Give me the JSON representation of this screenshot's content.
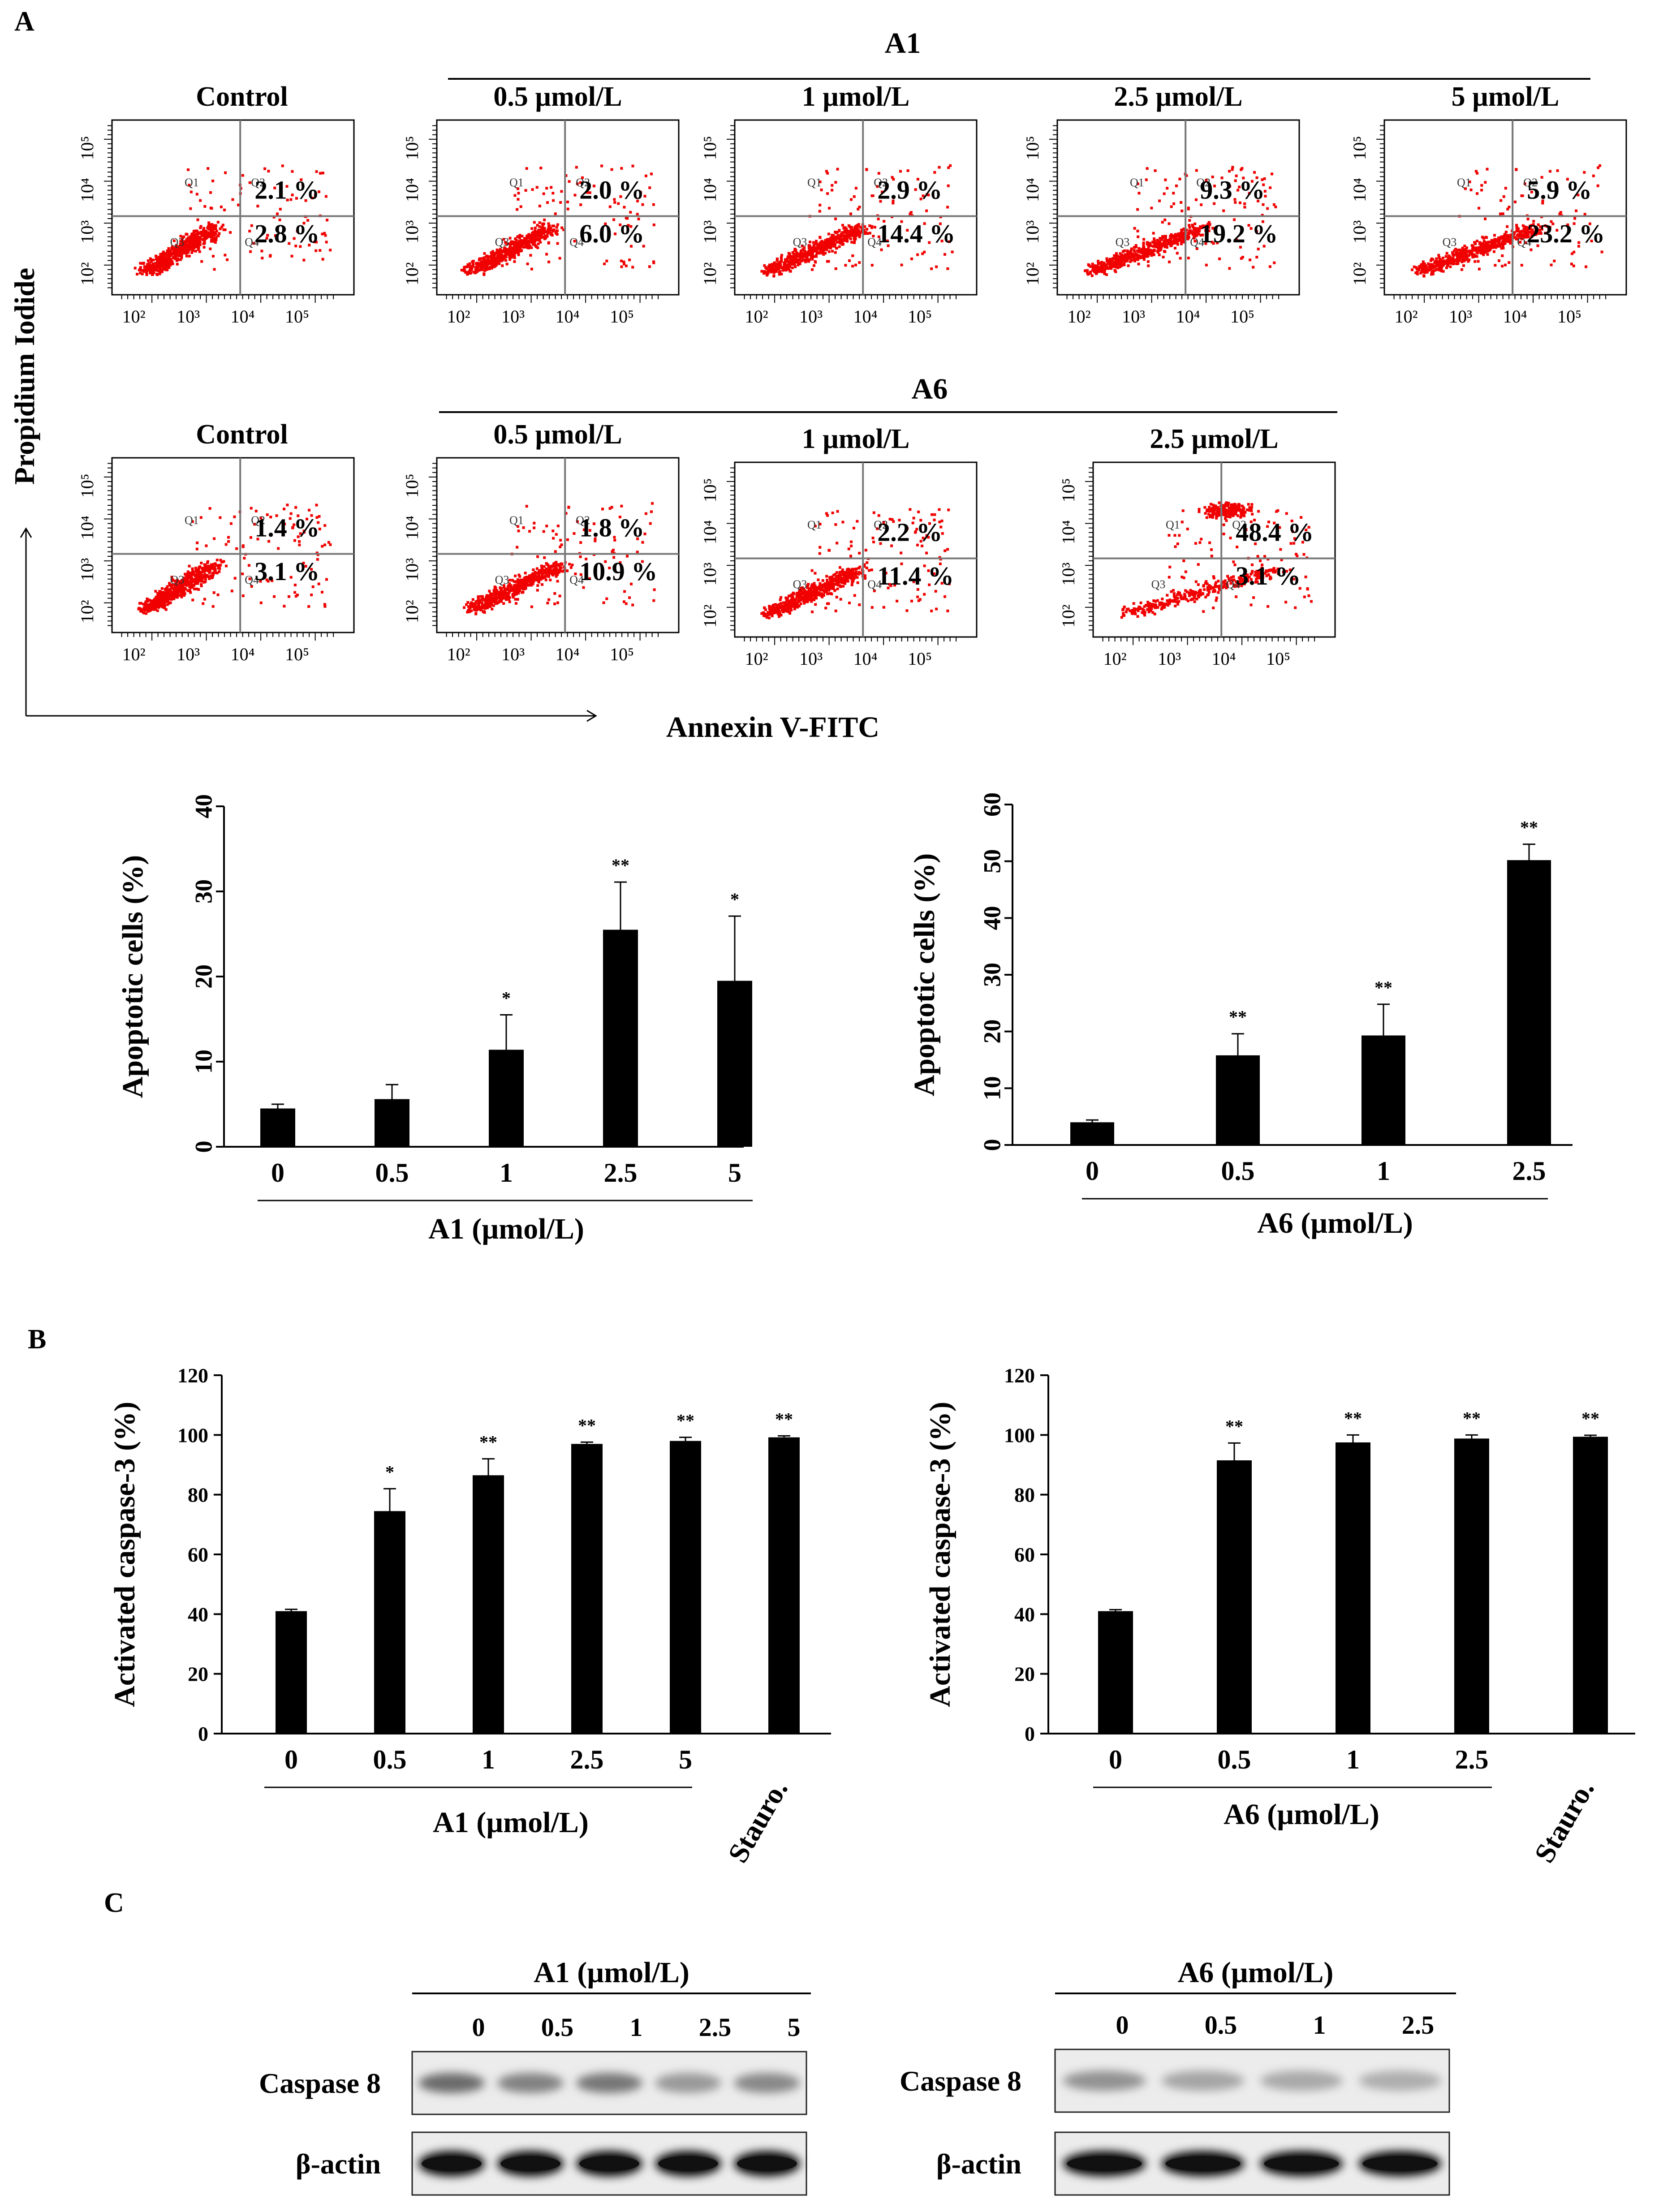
{
  "panel_labels": {
    "A": "A",
    "B": "B",
    "C": "C"
  },
  "flow": {
    "y_axis_label": "Propidium Iodide",
    "x_axis_label": "Annexin V-FITC",
    "tick_labels": [
      "10²",
      "10³",
      "10⁴",
      "10⁵"
    ],
    "gate_labels": [
      "Q1",
      "Q2",
      "Q3",
      "Q4"
    ],
    "rows": [
      {
        "group": "A1",
        "plots": [
          {
            "title": "Control",
            "upper": "2.1 %",
            "lower": "2.8 %",
            "spread": 0.1
          },
          {
            "title": "0.5 µmol/L",
            "upper": "2.0 %",
            "lower": "6.0 %",
            "spread": 0.22
          },
          {
            "title": "1 µmol/L",
            "upper": "2.9 %",
            "lower": "14.4 %",
            "spread": 0.35
          },
          {
            "title": "2.5 µmol/L",
            "upper": "9.3 %",
            "lower": "19.2 %",
            "spread": 0.55
          },
          {
            "title": "5 µmol/L",
            "upper": "5.9 %",
            "lower": "23.2 %",
            "spread": 0.62
          }
        ]
      },
      {
        "group": "A6",
        "plots": [
          {
            "title": "Control",
            "upper": "1.4 %",
            "lower": "3.1 %",
            "spread": 0.1
          },
          {
            "title": "0.5 µmol/L",
            "upper": "1.8 %",
            "lower": "10.9 %",
            "spread": 0.3
          },
          {
            "title": "1 µmol/L",
            "upper": "2.2 %",
            "lower": "11.4 %",
            "spread": 0.32
          },
          {
            "title": "2.5 µmol/L",
            "upper": "48.4 %",
            "lower": "3.1 %",
            "spread": 0.9
          }
        ]
      }
    ]
  },
  "chart_data": [
    {
      "id": "A1-apoptosis",
      "type": "bar",
      "title": "",
      "xlabel": "A1 (µmol/L)",
      "ylabel": "Apoptotic cells (%)",
      "categories": [
        "0",
        "0.5",
        "1",
        "2.5",
        "5"
      ],
      "values": [
        4.5,
        5.6,
        11.4,
        25.5,
        19.5
      ],
      "errors": [
        0.5,
        1.7,
        4.1,
        5.6,
        7.6
      ],
      "significance": [
        "",
        "",
        "*",
        "**",
        "*"
      ],
      "ylim": [
        0,
        40
      ],
      "yticks": [
        0,
        10,
        20,
        30,
        40
      ]
    },
    {
      "id": "A6-apoptosis",
      "type": "bar",
      "title": "",
      "xlabel": "A6 (µmol/L)",
      "ylabel": "Apoptotic cells (%)",
      "categories": [
        "0",
        "0.5",
        "1",
        "2.5"
      ],
      "values": [
        4.0,
        15.8,
        19.3,
        50.2
      ],
      "errors": [
        0.4,
        3.8,
        5.5,
        2.8
      ],
      "significance": [
        "",
        "**",
        "**",
        "**"
      ],
      "ylim": [
        0,
        60
      ],
      "yticks": [
        0,
        10,
        20,
        30,
        40,
        50,
        60
      ]
    },
    {
      "id": "A1-caspase3",
      "type": "bar",
      "title": "",
      "xlabel": "A1 (µmol/L)",
      "ylabel": "Activated caspase-3 (%)",
      "categories": [
        "0",
        "0.5",
        "1",
        "2.5",
        "5",
        "Stauro."
      ],
      "values": [
        41,
        74.5,
        86.5,
        97,
        98,
        99.2
      ],
      "errors": [
        0.6,
        7.5,
        5.5,
        0.6,
        1.2,
        0.5
      ],
      "significance": [
        "",
        "*",
        "**",
        "**",
        "**",
        "**"
      ],
      "ylim": [
        0,
        120
      ],
      "yticks": [
        0,
        20,
        40,
        60,
        80,
        100,
        120
      ]
    },
    {
      "id": "A6-caspase3",
      "type": "bar",
      "title": "",
      "xlabel": "A6 (µmol/L)",
      "ylabel": "Activated caspase-3 (%)",
      "categories": [
        "0",
        "0.5",
        "1",
        "2.5",
        "Stauro."
      ],
      "values": [
        41,
        91.5,
        97.5,
        98.8,
        99.4
      ],
      "errors": [
        0.5,
        5.8,
        2.5,
        1.2,
        0.5
      ],
      "significance": [
        "",
        "**",
        "**",
        "**",
        "**"
      ],
      "ylim": [
        0,
        120
      ],
      "yticks": [
        0,
        20,
        40,
        60,
        80,
        100,
        120
      ]
    }
  ],
  "western": [
    {
      "group": "A1 (µmol/L)",
      "lanes": [
        "0",
        "0.5",
        "1",
        "2.5",
        "5"
      ],
      "rows": [
        {
          "label": "Caspase 8",
          "intensity": [
            0.55,
            0.45,
            0.5,
            0.35,
            0.42
          ]
        },
        {
          "label": "β-actin",
          "intensity": [
            1,
            1,
            1,
            1,
            1
          ]
        }
      ]
    },
    {
      "group": "A6 (µmol/L)",
      "lanes": [
        "0",
        "0.5",
        "1",
        "2.5"
      ],
      "rows": [
        {
          "label": "Caspase 8",
          "intensity": [
            0.38,
            0.3,
            0.28,
            0.26
          ]
        },
        {
          "label": "β-actin",
          "intensity": [
            1,
            1,
            1,
            1
          ]
        }
      ]
    }
  ]
}
